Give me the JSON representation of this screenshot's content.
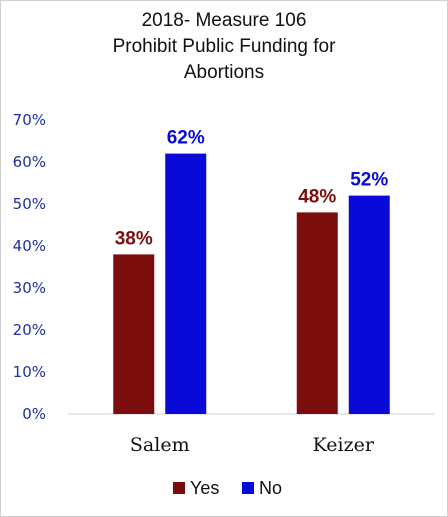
{
  "chart_data": {
    "type": "bar",
    "title_lines": [
      "2018- Measure 106",
      "Prohibit Public Funding for",
      "Abortions"
    ],
    "categories": [
      "Salem",
      "Keizer"
    ],
    "series": [
      {
        "name": "Yes",
        "values": [
          38,
          48
        ],
        "labels": [
          "38%",
          "48%"
        ],
        "color": "#7b0d0d"
      },
      {
        "name": "No",
        "values": [
          62,
          52
        ],
        "labels": [
          "62%",
          "52%"
        ],
        "color": "#0a0ad8"
      }
    ],
    "ylim": [
      0,
      70
    ],
    "yticks": [
      0,
      10,
      20,
      30,
      40,
      50,
      60,
      70
    ],
    "ytick_labels": [
      "0%",
      "10%",
      "20%",
      "30%",
      "40%",
      "50%",
      "60%",
      "70%"
    ],
    "legend_position": "bottom",
    "grid": false,
    "axis_color": "#1f2fa3"
  }
}
